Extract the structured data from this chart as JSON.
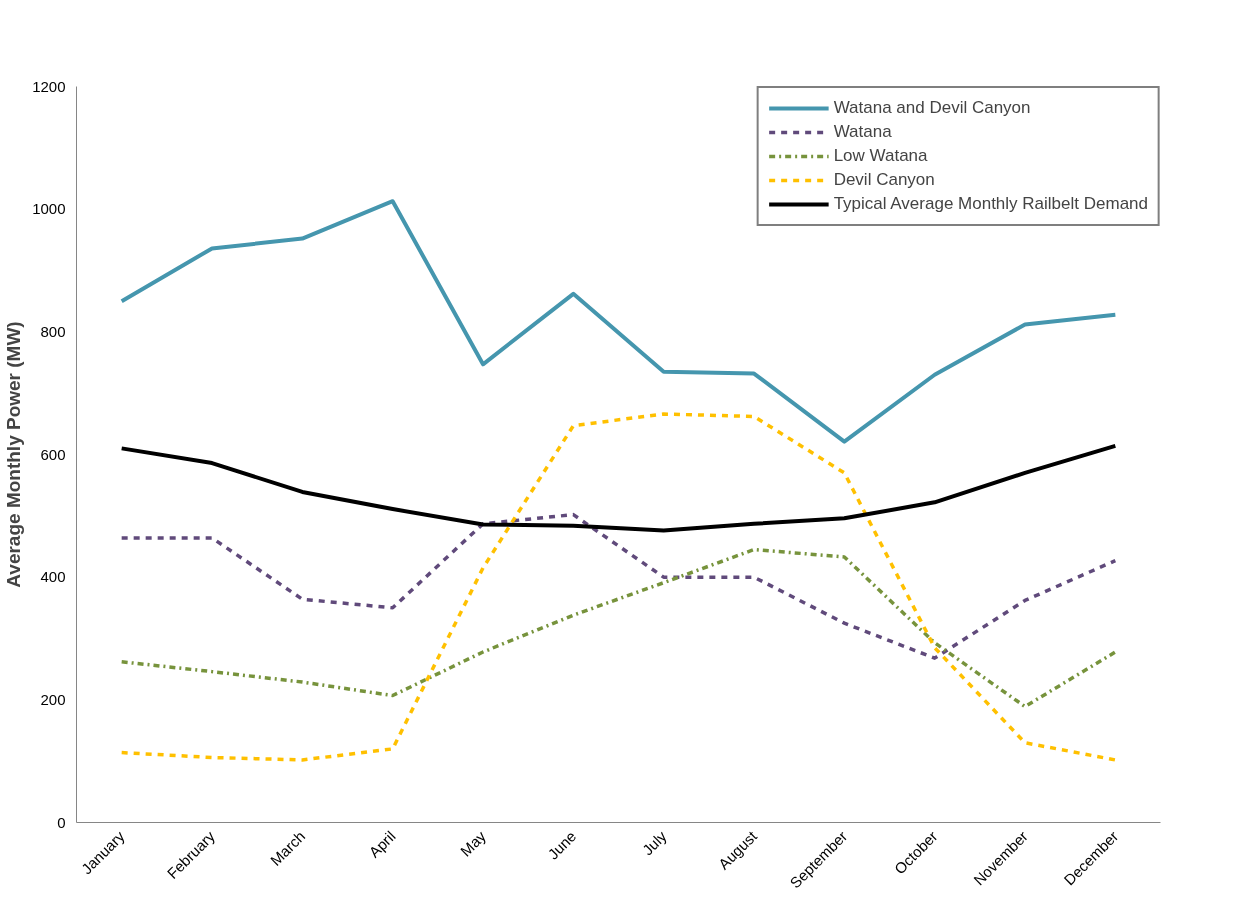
{
  "chart_data": {
    "type": "line",
    "ylabel": "Average Monthly Power (MW)",
    "categories": [
      "January",
      "February",
      "March",
      "April",
      "May",
      "June",
      "July",
      "August",
      "September",
      "October",
      "November",
      "December"
    ],
    "ylim": [
      0,
      1200
    ],
    "yticks": [
      0,
      200,
      400,
      600,
      800,
      1000,
      1200
    ],
    "grid": false,
    "legend": "top right",
    "marker": "none",
    "series": [
      {
        "name": "Watana and Devil Canyon",
        "color": "#4596ae",
        "line_style": "solid",
        "values": [
          850,
          936,
          952,
          1013,
          747,
          862,
          735,
          732,
          621,
          730,
          812,
          828
        ]
      },
      {
        "name": "Watana",
        "color": "#604a7b",
        "line_style": "dashed",
        "values": [
          464,
          464,
          364,
          350,
          487,
          502,
          400,
          400,
          325,
          268,
          362,
          427
        ]
      },
      {
        "name": "Low Watana",
        "color": "#77933c",
        "line_style": "dashdot",
        "values": [
          262,
          246,
          229,
          207,
          278,
          338,
          391,
          445,
          433,
          293,
          189,
          278
        ]
      },
      {
        "name": "Devil Canyon",
        "color": "#ffc000",
        "line_style": "dashed",
        "values": [
          114,
          106,
          102,
          120,
          415,
          647,
          666,
          662,
          570,
          285,
          130,
          102
        ]
      },
      {
        "name": "Typical Average Monthly Railbelt Demand",
        "color": "#000000",
        "line_style": "solid",
        "values": [
          610,
          586,
          539,
          511,
          486,
          484,
          476,
          487,
          496,
          522,
          570,
          614
        ]
      }
    ]
  }
}
